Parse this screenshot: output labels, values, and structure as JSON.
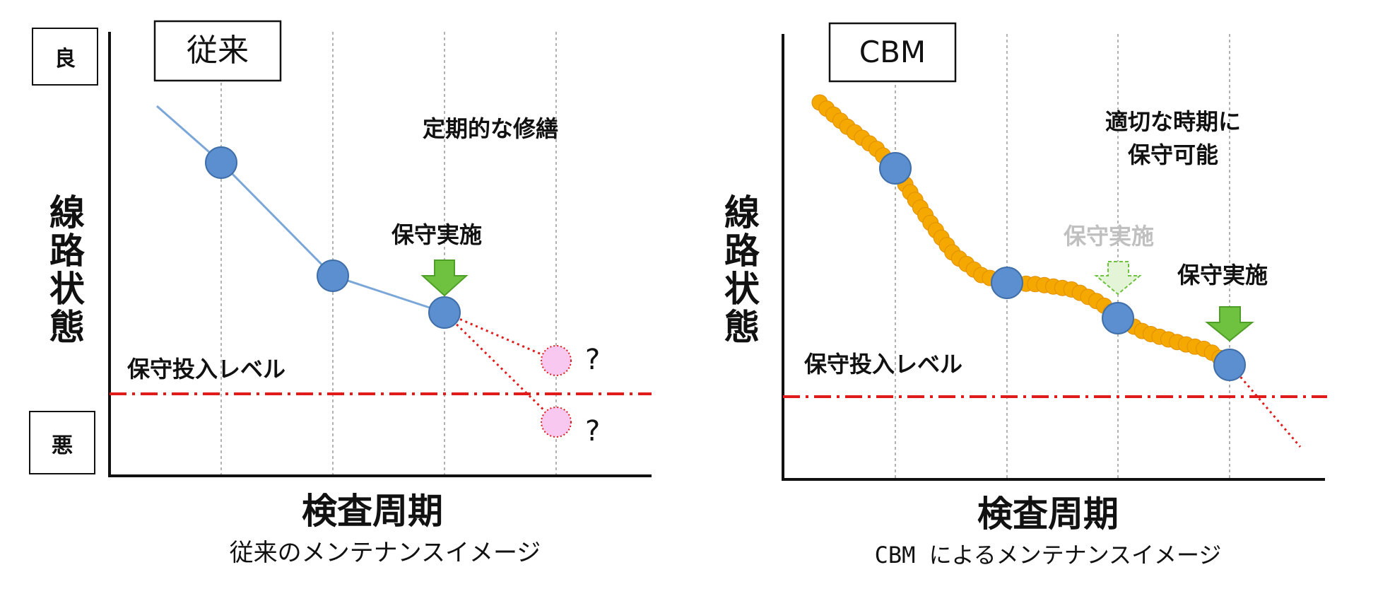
{
  "left_panel": {
    "title": "従来",
    "good_label": "良",
    "bad_label": "悪",
    "y_axis_label": [
      "線",
      "路",
      "状",
      "態"
    ],
    "x_axis_label": "検査周期",
    "caption": "従来のメンテナンスイメージ",
    "annotation_periodic": "定期的な修繕",
    "annotation_maintenance": "保守実施",
    "threshold_label": "保守投入レベル",
    "question_marks": [
      "?",
      "?"
    ]
  },
  "right_panel": {
    "title": "CBM",
    "y_axis_label": [
      "線",
      "路",
      "状",
      "態"
    ],
    "x_axis_label": "検査周期",
    "caption": "CBM によるメンテナンスイメージ",
    "annotation_timely": [
      "適切な時期に",
      "保守可能"
    ],
    "annotation_maintenance_faded": "保守実施",
    "annotation_maintenance": "保守実施",
    "threshold_label": "保守投入レベル"
  },
  "colors": {
    "line_blue": "#7ba7d8",
    "point_blue": "#5b8fcf",
    "point_stroke": "#3f6ea8",
    "threshold_red": "#e11a1a",
    "arrow_green": "#6ec23f",
    "arrow_green_light": "#e3f5d6",
    "question_pink": "#f8c8f0",
    "orange_chain": "#f5a800",
    "faded_text": "#c0c0c0"
  }
}
